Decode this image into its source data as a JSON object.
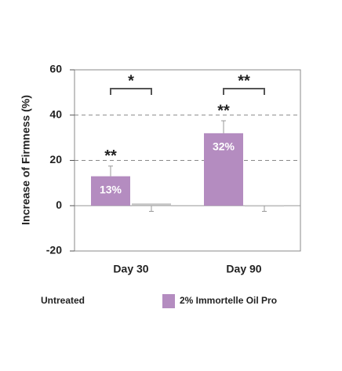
{
  "chart_data": {
    "type": "bar",
    "y_label": "Increase of Firmness (%)",
    "categories": [
      "Day 30",
      "Day 90"
    ],
    "series": [
      {
        "name": "2% Immortelle Oil Pro",
        "color": "#b48cc0",
        "values": [
          13,
          32
        ],
        "value_labels": [
          "13%",
          "32%"
        ],
        "errors": [
          4.5,
          5.5
        ],
        "error_direction": "up",
        "annotations": [
          "**",
          "**"
        ],
        "legend_swatch": true
      },
      {
        "name": "Untreated",
        "color": "#c4c4c4",
        "values": [
          1,
          0
        ],
        "errors": [
          3.5,
          2.5
        ],
        "error_direction": "down",
        "legend_swatch": false
      }
    ],
    "comparison_annotations": [
      "*",
      "**"
    ],
    "ylim": [
      -20,
      60
    ],
    "yticks": [
      -20,
      0,
      20,
      40,
      60
    ],
    "grid": true
  }
}
